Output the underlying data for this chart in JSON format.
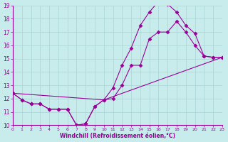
{
  "xlabel": "Windchill (Refroidissement éolien,°C)",
  "bg_color": "#c8ecec",
  "line_color": "#990099",
  "grid_color": "#aad4d4",
  "ylim": [
    10,
    19
  ],
  "xlim": [
    0,
    23
  ],
  "yticks": [
    10,
    11,
    12,
    13,
    14,
    15,
    16,
    17,
    18,
    19
  ],
  "xticks": [
    0,
    1,
    2,
    3,
    4,
    5,
    6,
    7,
    8,
    9,
    10,
    11,
    12,
    13,
    14,
    15,
    16,
    17,
    18,
    19,
    20,
    21,
    22,
    23
  ],
  "series": [
    {
      "x": [
        0,
        10,
        23
      ],
      "y": [
        12.4,
        11.9,
        15.1
      ],
      "markers": false
    },
    {
      "x": [
        0,
        1,
        2,
        3,
        4,
        5,
        6,
        7,
        8,
        9,
        10,
        11,
        12,
        13,
        14,
        15,
        16,
        17,
        18,
        19,
        20,
        21,
        22,
        23
      ],
      "y": [
        12.4,
        11.9,
        11.6,
        11.6,
        11.2,
        11.2,
        11.2,
        10.0,
        10.1,
        11.4,
        11.9,
        12.0,
        13.0,
        14.5,
        14.5,
        16.5,
        17.0,
        17.0,
        17.8,
        17.0,
        16.0,
        15.2,
        15.1,
        15.1
      ],
      "markers": true
    },
    {
      "x": [
        0,
        1,
        2,
        3,
        4,
        5,
        6,
        7,
        8,
        9,
        10,
        11,
        12,
        13,
        14,
        15,
        16,
        17,
        18,
        19,
        20,
        21,
        22,
        23
      ],
      "y": [
        12.4,
        11.9,
        11.6,
        11.6,
        11.2,
        11.2,
        11.2,
        10.0,
        10.1,
        11.4,
        11.9,
        12.8,
        14.5,
        15.8,
        17.5,
        18.5,
        19.3,
        19.1,
        18.5,
        17.5,
        16.9,
        15.2,
        15.1,
        15.1
      ],
      "markers": true
    }
  ]
}
